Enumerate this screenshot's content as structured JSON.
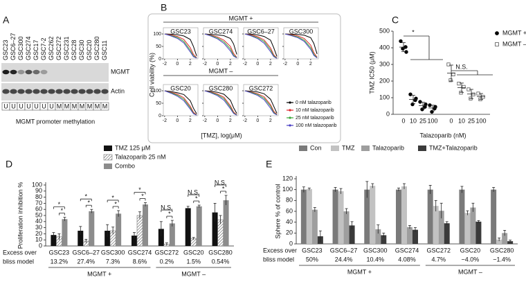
{
  "panel_a": {
    "label": "A",
    "samples": [
      "GSC23",
      "GSC6–27",
      "GSC300",
      "GSC274",
      "GSC17",
      "GSC7-2",
      "GSC262",
      "GSC272",
      "GSC231",
      "GSC28",
      "GSC30",
      "GSC20",
      "GSC280",
      "GSC11"
    ],
    "bands": [
      "MGMT",
      "Actin"
    ],
    "methylation": [
      "U",
      "U",
      "U",
      "U",
      "U",
      "U",
      "U",
      "M",
      "M",
      "M",
      "M",
      "M",
      "M",
      "M"
    ],
    "caption": "MGMT promoter methylation"
  },
  "chart_data": [
    {
      "type": "line",
      "label": "B",
      "group_titles": [
        "MGMT +",
        "MGMT –"
      ],
      "ylabel": "Cell viability (%)",
      "xlabel": "[TMZ], log(μM)",
      "subplots": [
        "GSC23",
        "GSC274",
        "GSC6–27",
        "GSC300",
        "GSC20",
        "GSC280",
        "GSC272"
      ],
      "x": [
        -2,
        -1,
        0,
        1,
        2,
        2.5,
        3
      ],
      "xlim": [
        -2.2,
        3.2
      ],
      "ylim": [
        0,
        125
      ],
      "xticks": [
        -2,
        0,
        2
      ],
      "yticks": [
        0,
        50,
        100
      ],
      "series": [
        {
          "name": "0 nM talazoparib",
          "color": "#000000",
          "values": [
            [
              100,
              99,
              97,
              92,
              78,
              50,
              12
            ],
            [
              100,
              98,
              96,
              93,
              82,
              60,
              18
            ],
            [
              100,
              99,
              96,
              90,
              75,
              45,
              10
            ],
            [
              100,
              99,
              98,
              95,
              85,
              62,
              20
            ],
            [
              100,
              97,
              92,
              85,
              60,
              30,
              8
            ],
            [
              100,
              98,
              94,
              86,
              62,
              32,
              9
            ],
            [
              100,
              98,
              95,
              88,
              66,
              38,
              10
            ]
          ]
        },
        {
          "name": "10 nM talazoparib",
          "color": "#e0262b",
          "values": [
            [
              100,
              96,
              90,
              78,
              45,
              18,
              5
            ],
            [
              100,
              95,
              88,
              75,
              50,
              22,
              6
            ],
            [
              100,
              96,
              89,
              76,
              44,
              16,
              4
            ],
            [
              100,
              97,
              92,
              82,
              55,
              25,
              7
            ],
            [
              100,
              94,
              86,
              72,
              38,
              14,
              4
            ],
            [
              100,
              95,
              87,
              74,
              40,
              15,
              4
            ],
            [
              100,
              95,
              88,
              76,
              44,
              18,
              5
            ]
          ]
        },
        {
          "name": "25 nM talazoparib",
          "color": "#3aa83a",
          "values": [
            [
              100,
              94,
              86,
              70,
              35,
              12,
              4
            ],
            [
              100,
              93,
              84,
              68,
              40,
              15,
              5
            ],
            [
              100,
              94,
              85,
              70,
              36,
              12,
              3
            ],
            [
              100,
              95,
              88,
              75,
              45,
              18,
              5
            ],
            [
              100,
              92,
              82,
              66,
              32,
              10,
              3
            ],
            [
              100,
              93,
              84,
              68,
              34,
              11,
              3
            ],
            [
              100,
              93,
              85,
              70,
              38,
              13,
              4
            ]
          ]
        },
        {
          "name": "100 nM talazoparib",
          "color": "#4a3fc4",
          "values": [
            [
              100,
              92,
              82,
              64,
              28,
              9,
              3
            ],
            [
              100,
              91,
              80,
              62,
              32,
              11,
              4
            ],
            [
              100,
              92,
              81,
              63,
              29,
              9,
              2
            ],
            [
              100,
              93,
              85,
              70,
              38,
              14,
              4
            ],
            [
              100,
              90,
              78,
              60,
              26,
              8,
              2
            ],
            [
              100,
              91,
              80,
              62,
              28,
              9,
              2
            ],
            [
              100,
              91,
              81,
              64,
              30,
              10,
              3
            ]
          ]
        }
      ]
    },
    {
      "type": "strip",
      "label": "C",
      "ylabel": "TMZ IC50 (μM)",
      "xlabel": "Talazoparib (nM)",
      "ylim": [
        0,
        500
      ],
      "yticks": [
        0,
        100,
        200,
        300,
        400,
        500
      ],
      "annotations": [
        "*",
        "N.S."
      ],
      "series": [
        {
          "name": "MGMT +",
          "color": "#000000",
          "marker": "circle",
          "filled": true,
          "categories": [
            "0",
            "10",
            "25",
            "100"
          ],
          "groups": [
            [
              440,
              405,
              395,
              375
            ],
            [
              120,
              85,
              60,
              95
            ],
            [
              75,
              45,
              30,
              60
            ],
            [
              55,
              35,
              15,
              45
            ]
          ],
          "means": [
            404,
            90,
            53,
            38
          ],
          "errors": [
            27,
            25,
            20,
            17
          ]
        },
        {
          "name": "MGMT –",
          "color": "#555555",
          "marker": "square",
          "filled": false,
          "categories": [
            "0",
            "10",
            "25",
            "100"
          ],
          "groups": [
            [
              300,
              240,
              205
            ],
            [
              185,
              165,
              130
            ],
            [
              150,
              120,
              95
            ],
            [
              125,
              105,
              90
            ]
          ],
          "means": [
            248,
            160,
            122,
            107
          ],
          "errors": [
            48,
            28,
            28,
            18
          ]
        }
      ]
    },
    {
      "type": "bar",
      "label": "D",
      "ylabel": "Proliferation inhibition %",
      "categories": [
        "GSC23",
        "GSC6–27",
        "GSC300",
        "GSC274",
        "GSC272",
        "GSC20",
        "GSC280"
      ],
      "ylim": [
        0,
        100
      ],
      "yticks": [
        0,
        10,
        20,
        30,
        40,
        50,
        60,
        70,
        80,
        90,
        100
      ],
      "row_label": [
        "Excess over",
        "bliss model"
      ],
      "row_values": [
        "13.2%",
        "27.4%",
        "7.3%",
        "8.6%",
        "0.2%",
        "1.5%",
        "0.54%"
      ],
      "group_titles": [
        "MGMT +",
        "MGMT –"
      ],
      "annotations": [
        "*",
        "*",
        "*",
        "*",
        "*",
        "*",
        "*",
        "*",
        "N.S.",
        "*",
        "N.S.",
        "*",
        "N.S.",
        "*"
      ],
      "series": [
        {
          "name": "TMZ 125 μM",
          "color": "#111111",
          "hatch": false,
          "values": [
            18,
            25,
            25,
            17,
            28,
            62,
            55
          ],
          "errors": [
            4,
            7,
            10,
            5,
            12,
            3,
            15
          ]
        },
        {
          "name": "Talazoparib 25 nM",
          "color": "#777777",
          "hatch": true,
          "values": [
            15,
            8,
            25,
            50,
            3,
            12,
            43
          ],
          "errors": [
            5,
            3,
            6,
            6,
            2,
            2,
            7
          ]
        },
        {
          "name": "Combo",
          "color": "#8c8c8c",
          "hatch": false,
          "values": [
            44,
            57,
            53,
            68,
            37,
            65,
            75
          ],
          "errors": [
            3,
            3,
            5,
            3,
            5,
            2,
            8
          ]
        }
      ]
    },
    {
      "type": "bar",
      "label": "E",
      "ylabel": "Sphere % of control",
      "categories": [
        "GSC23",
        "GSC6–27",
        "GSC300",
        "GSC274",
        "GSC272",
        "GSC20",
        "GSC280"
      ],
      "ylim": [
        0,
        120
      ],
      "yticks": [
        0,
        20,
        40,
        60,
        80,
        100,
        120
      ],
      "row_label": [
        "Excess over",
        "bliss model"
      ],
      "row_values": [
        "50%",
        "24.4%",
        "10.4%",
        "4.08%",
        "4.7%",
        "−4.0%",
        "−1.4%"
      ],
      "group_titles": [
        "MGMT +",
        "MGMT –"
      ],
      "annotations": [],
      "series": [
        {
          "name": "Con",
          "color": "#7a7a7a",
          "hatch": false,
          "values": [
            100,
            100,
            100,
            100,
            100,
            100,
            100
          ],
          "errors": [
            5,
            4,
            15,
            3,
            8,
            6,
            4
          ]
        },
        {
          "name": "TMZ",
          "color": "#c2c2c2",
          "hatch": false,
          "values": [
            101,
            97,
            107,
            106,
            70,
            57,
            8
          ],
          "errors": [
            2,
            5,
            4,
            5,
            10,
            4,
            3
          ]
        },
        {
          "name": "Talazoparib",
          "color": "#9e9e9e",
          "hatch": false,
          "values": [
            63,
            60,
            27,
            31,
            61,
            67,
            20
          ],
          "errors": [
            4,
            5,
            8,
            3,
            14,
            8,
            5
          ]
        },
        {
          "name": "TMZ+Talazoparib",
          "color": "#3a3a3a",
          "hatch": false,
          "values": [
            14,
            34,
            16,
            26,
            38,
            41,
            5
          ],
          "errors": [
            10,
            7,
            4,
            4,
            3,
            2,
            2
          ]
        }
      ]
    }
  ]
}
